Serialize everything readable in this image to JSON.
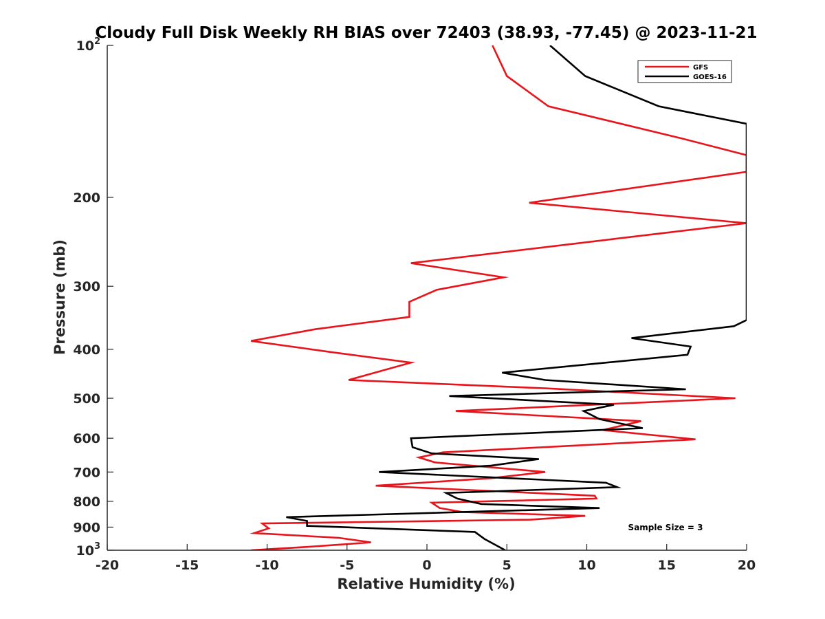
{
  "chart_data": {
    "type": "line",
    "title": "Cloudy Full Disk Weekly RH BIAS over 72403 (38.93, -77.45) @ 2023-11-21",
    "xlabel": "Relative Humidity (%)",
    "ylabel": "Pressure (mb)",
    "xlim": [
      -20,
      20
    ],
    "ylim": [
      100,
      1000
    ],
    "yscale": "log",
    "y_reversed": true,
    "x_ticks": [
      "-20",
      "-15",
      "-10",
      "-5",
      "0",
      "5",
      "10",
      "15",
      "20"
    ],
    "y_ticks": [
      {
        "value": 100,
        "label": "10",
        "sup": "2"
      },
      {
        "value": 200,
        "label": "200"
      },
      {
        "value": 300,
        "label": "300"
      },
      {
        "value": 400,
        "label": "400"
      },
      {
        "value": 500,
        "label": "500"
      },
      {
        "value": 600,
        "label": "600"
      },
      {
        "value": 700,
        "label": "700"
      },
      {
        "value": 800,
        "label": "800"
      },
      {
        "value": 900,
        "label": "900"
      },
      {
        "value": 1000,
        "label": "10",
        "sup": "3"
      }
    ],
    "legend_position": "top-right",
    "annotation": "Sample Size = 3",
    "series": [
      {
        "name": "GFS",
        "color": "#e8141c",
        "points": [
          [
            4.1,
            100
          ],
          [
            5.0,
            115
          ],
          [
            7.6,
            132
          ],
          [
            16.0,
            153
          ],
          [
            20.0,
            165
          ],
          [
            20.0,
            178
          ],
          [
            6.4,
            205
          ],
          [
            20.0,
            225
          ],
          [
            11.6,
            242
          ],
          [
            -1.0,
            270
          ],
          [
            4.8,
            288
          ],
          [
            0.6,
            305
          ],
          [
            -1.1,
            322
          ],
          [
            -1.1,
            345
          ],
          [
            -7.0,
            365
          ],
          [
            -11.0,
            385
          ],
          [
            -6.0,
            405
          ],
          [
            -1.0,
            425
          ],
          [
            -2.7,
            440
          ],
          [
            -4.9,
            460
          ],
          [
            7.5,
            478
          ],
          [
            19.3,
            500
          ],
          [
            1.8,
            530
          ],
          [
            13.4,
            555
          ],
          [
            11.0,
            578
          ],
          [
            16.8,
            603
          ],
          [
            1.0,
            640
          ],
          [
            -0.5,
            655
          ],
          [
            0.5,
            670
          ],
          [
            7.4,
            700
          ],
          [
            4.0,
            720
          ],
          [
            -3.2,
            745
          ],
          [
            10.5,
            780
          ],
          [
            10.6,
            790
          ],
          [
            0.3,
            805
          ],
          [
            0.8,
            825
          ],
          [
            2.2,
            840
          ],
          [
            9.9,
            855
          ],
          [
            6.5,
            870
          ],
          [
            -10.3,
            885
          ],
          [
            -9.9,
            905
          ],
          [
            -10.8,
            925
          ],
          [
            -5.5,
            945
          ],
          [
            -3.5,
            965
          ],
          [
            -7.5,
            985
          ],
          [
            -11.0,
            1000
          ]
        ]
      },
      {
        "name": "GOES-16",
        "color": "#000000",
        "points": [
          [
            7.7,
            100
          ],
          [
            9.9,
            115
          ],
          [
            14.5,
            132
          ],
          [
            20.0,
            143
          ],
          [
            20.0,
            350
          ],
          [
            19.2,
            360
          ],
          [
            12.8,
            380
          ],
          [
            16.5,
            395
          ],
          [
            16.3,
            410
          ],
          [
            4.7,
            445
          ],
          [
            7.4,
            460
          ],
          [
            16.2,
            480
          ],
          [
            1.4,
            495
          ],
          [
            11.7,
            515
          ],
          [
            9.8,
            530
          ],
          [
            10.8,
            550
          ],
          [
            13.5,
            573
          ],
          [
            -1.0,
            600
          ],
          [
            -0.9,
            625
          ],
          [
            0.3,
            643
          ],
          [
            7.0,
            660
          ],
          [
            4.0,
            680
          ],
          [
            -3.0,
            700
          ],
          [
            11.2,
            735
          ],
          [
            11.9,
            750
          ],
          [
            1.2,
            770
          ],
          [
            1.9,
            790
          ],
          [
            3.4,
            810
          ],
          [
            10.8,
            825
          ],
          [
            -8.8,
            860
          ],
          [
            -7.5,
            875
          ],
          [
            -7.5,
            895
          ],
          [
            3.0,
            920
          ],
          [
            3.6,
            950
          ],
          [
            4.9,
            1000
          ]
        ]
      }
    ]
  }
}
